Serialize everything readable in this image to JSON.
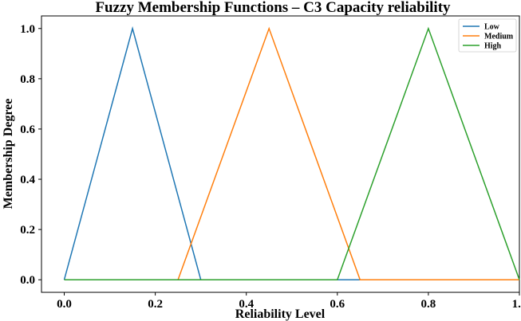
{
  "chart_data": {
    "type": "line",
    "title": "Fuzzy Membership Functions – C3 Capacity reliability",
    "xlabel": "Reliability Level",
    "ylabel": "Membership Degree",
    "xlim": [
      -0.05,
      1.0
    ],
    "ylim": [
      -0.05,
      1.05
    ],
    "xticks": [
      0.0,
      0.2,
      0.4,
      0.6,
      0.8,
      1.0
    ],
    "xtick_labels": [
      "0.0",
      "0.2",
      "0.4",
      "0.6",
      "0.8",
      "1.0"
    ],
    "yticks": [
      0.0,
      0.2,
      0.4,
      0.6,
      0.8,
      1.0
    ],
    "ytick_labels": [
      "0.0",
      "0.2",
      "0.4",
      "0.6",
      "0.8",
      "1.0"
    ],
    "grid": false,
    "legend_position": "top-right",
    "series": [
      {
        "name": "Low",
        "color": "#1f77b4",
        "x": [
          0.0,
          0.15,
          0.3,
          1.0
        ],
        "y": [
          0.0,
          1.0,
          0.0,
          0.0
        ]
      },
      {
        "name": "Medium",
        "color": "#ff7f0e",
        "x": [
          0.25,
          0.45,
          0.65,
          1.0
        ],
        "y": [
          0.0,
          1.0,
          0.0,
          0.0
        ]
      },
      {
        "name": "High",
        "color": "#2ca02c",
        "x": [
          0.0,
          0.6,
          0.8,
          1.0
        ],
        "y": [
          0.0,
          0.0,
          1.0,
          0.0
        ]
      }
    ]
  }
}
